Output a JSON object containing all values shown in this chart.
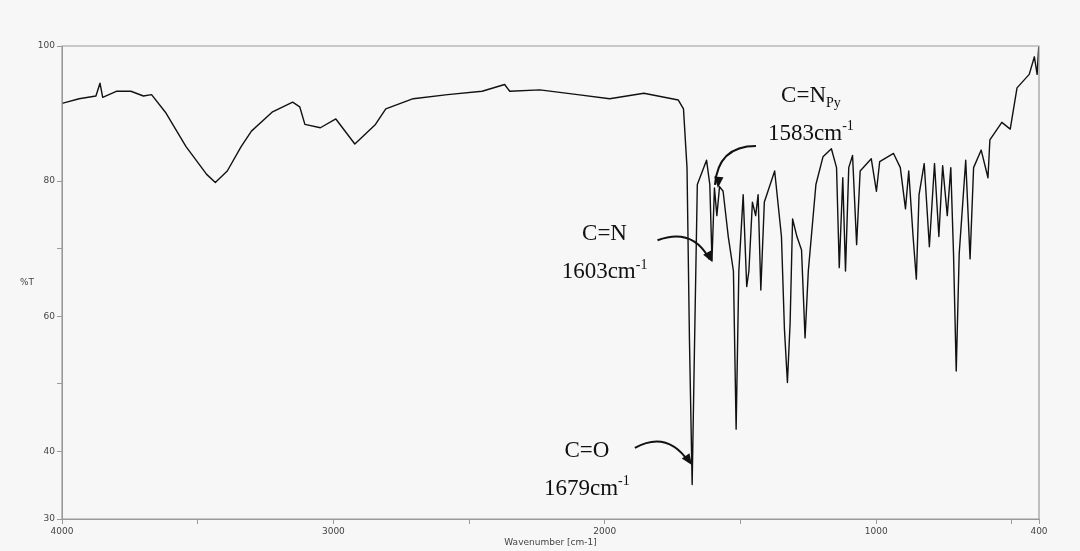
{
  "chart_data": {
    "type": "line",
    "xlabel": "Wavenumber [cm-1]",
    "ylabel": "%T",
    "xlim": [
      4000,
      400
    ],
    "xticks": [
      4000,
      {
        "value": 3500,
        "label": null
      },
      3000,
      {
        "value": 2500,
        "label": null
      },
      2000,
      {
        "value": 1500,
        "label": null
      },
      1000,
      {
        "value": 500,
        "label": null
      },
      400
    ],
    "ylim": [
      30,
      100
    ],
    "yticks": [
      30,
      40,
      {
        "value": 50,
        "label": null
      },
      60,
      {
        "value": 70,
        "label": null
      },
      80,
      100
    ],
    "grid": false,
    "legend": false,
    "marker": "none",
    "line_style": "solid",
    "series": [
      {
        "color": "#111111",
        "x": [
          4000,
          3937,
          3875,
          3860,
          3850,
          3800,
          3746,
          3700,
          3670,
          3619,
          3543,
          3467,
          3435,
          3391,
          3340,
          3302,
          3226,
          3150,
          3124,
          3105,
          3048,
          2991,
          2921,
          2845,
          2807,
          2706,
          2579,
          2452,
          2369,
          2350,
          2239,
          2100,
          1982,
          1856,
          1729,
          1710,
          1697,
          1688,
          1678,
          1669,
          1659,
          1625,
          1613,
          1605,
          1596,
          1587,
          1577,
          1564,
          1545,
          1526,
          1516,
          1506,
          1490,
          1477,
          1469,
          1456,
          1444,
          1435,
          1425,
          1412,
          1374,
          1349,
          1338,
          1327,
          1317,
          1308,
          1292,
          1275,
          1262,
          1250,
          1222,
          1196,
          1165,
          1146,
          1136,
          1123,
          1113,
          1101,
          1087,
          1072,
          1059,
          1018,
          999,
          987,
          936,
          911,
          892,
          880,
          864,
          852,
          842,
          823,
          804,
          785,
          769,
          755,
          738,
          725,
          715,
          705,
          694,
          670,
          654,
          641,
          613,
          588,
          581,
          537,
          506,
          481,
          436,
          417,
          407,
          401
        ],
        "values": [
          91.5,
          92.2,
          92.6,
          94.5,
          92.4,
          93.3,
          93.3,
          92.6,
          92.8,
          90.2,
          85.1,
          81.0,
          79.8,
          81.5,
          85.1,
          87.4,
          90.2,
          91.7,
          91.0,
          88.4,
          87.9,
          89.2,
          85.5,
          88.4,
          90.7,
          92.2,
          92.8,
          93.3,
          94.3,
          93.3,
          93.5,
          92.8,
          92.2,
          93.0,
          92.0,
          90.7,
          82.0,
          56.5,
          35.1,
          56.5,
          79.5,
          83.1,
          79.5,
          68.3,
          79.0,
          74.9,
          79.2,
          78.5,
          71.8,
          66.7,
          43.3,
          66.7,
          78.0,
          64.4,
          66.7,
          76.9,
          74.9,
          78.0,
          63.9,
          76.9,
          81.5,
          71.8,
          58.1,
          50.2,
          59.1,
          74.4,
          71.8,
          69.8,
          56.8,
          66.7,
          79.5,
          83.6,
          84.8,
          82.0,
          67.2,
          80.5,
          66.7,
          82.0,
          83.8,
          70.6,
          81.5,
          83.3,
          78.5,
          82.9,
          84.1,
          82.0,
          75.9,
          81.5,
          71.8,
          65.5,
          78.0,
          82.6,
          70.3,
          82.6,
          71.8,
          82.3,
          74.9,
          82.0,
          69.3,
          51.9,
          69.3,
          83.1,
          68.5,
          82.0,
          84.6,
          80.5,
          86.1,
          88.7,
          87.7,
          93.8,
          95.8,
          98.4,
          95.8,
          99.9
        ]
      }
    ],
    "annotations": [
      {
        "text": "C=O\n1679cm$^{-1}$",
        "x": 1679,
        "y": 38
      },
      {
        "text": "C=N\n1603cm$^{-1}$",
        "x": 1603,
        "y": 68
      },
      {
        "text": "C=N$_{Py}$\n1583cm$^{-1}$",
        "x": 1583,
        "y": 79
      }
    ]
  }
}
